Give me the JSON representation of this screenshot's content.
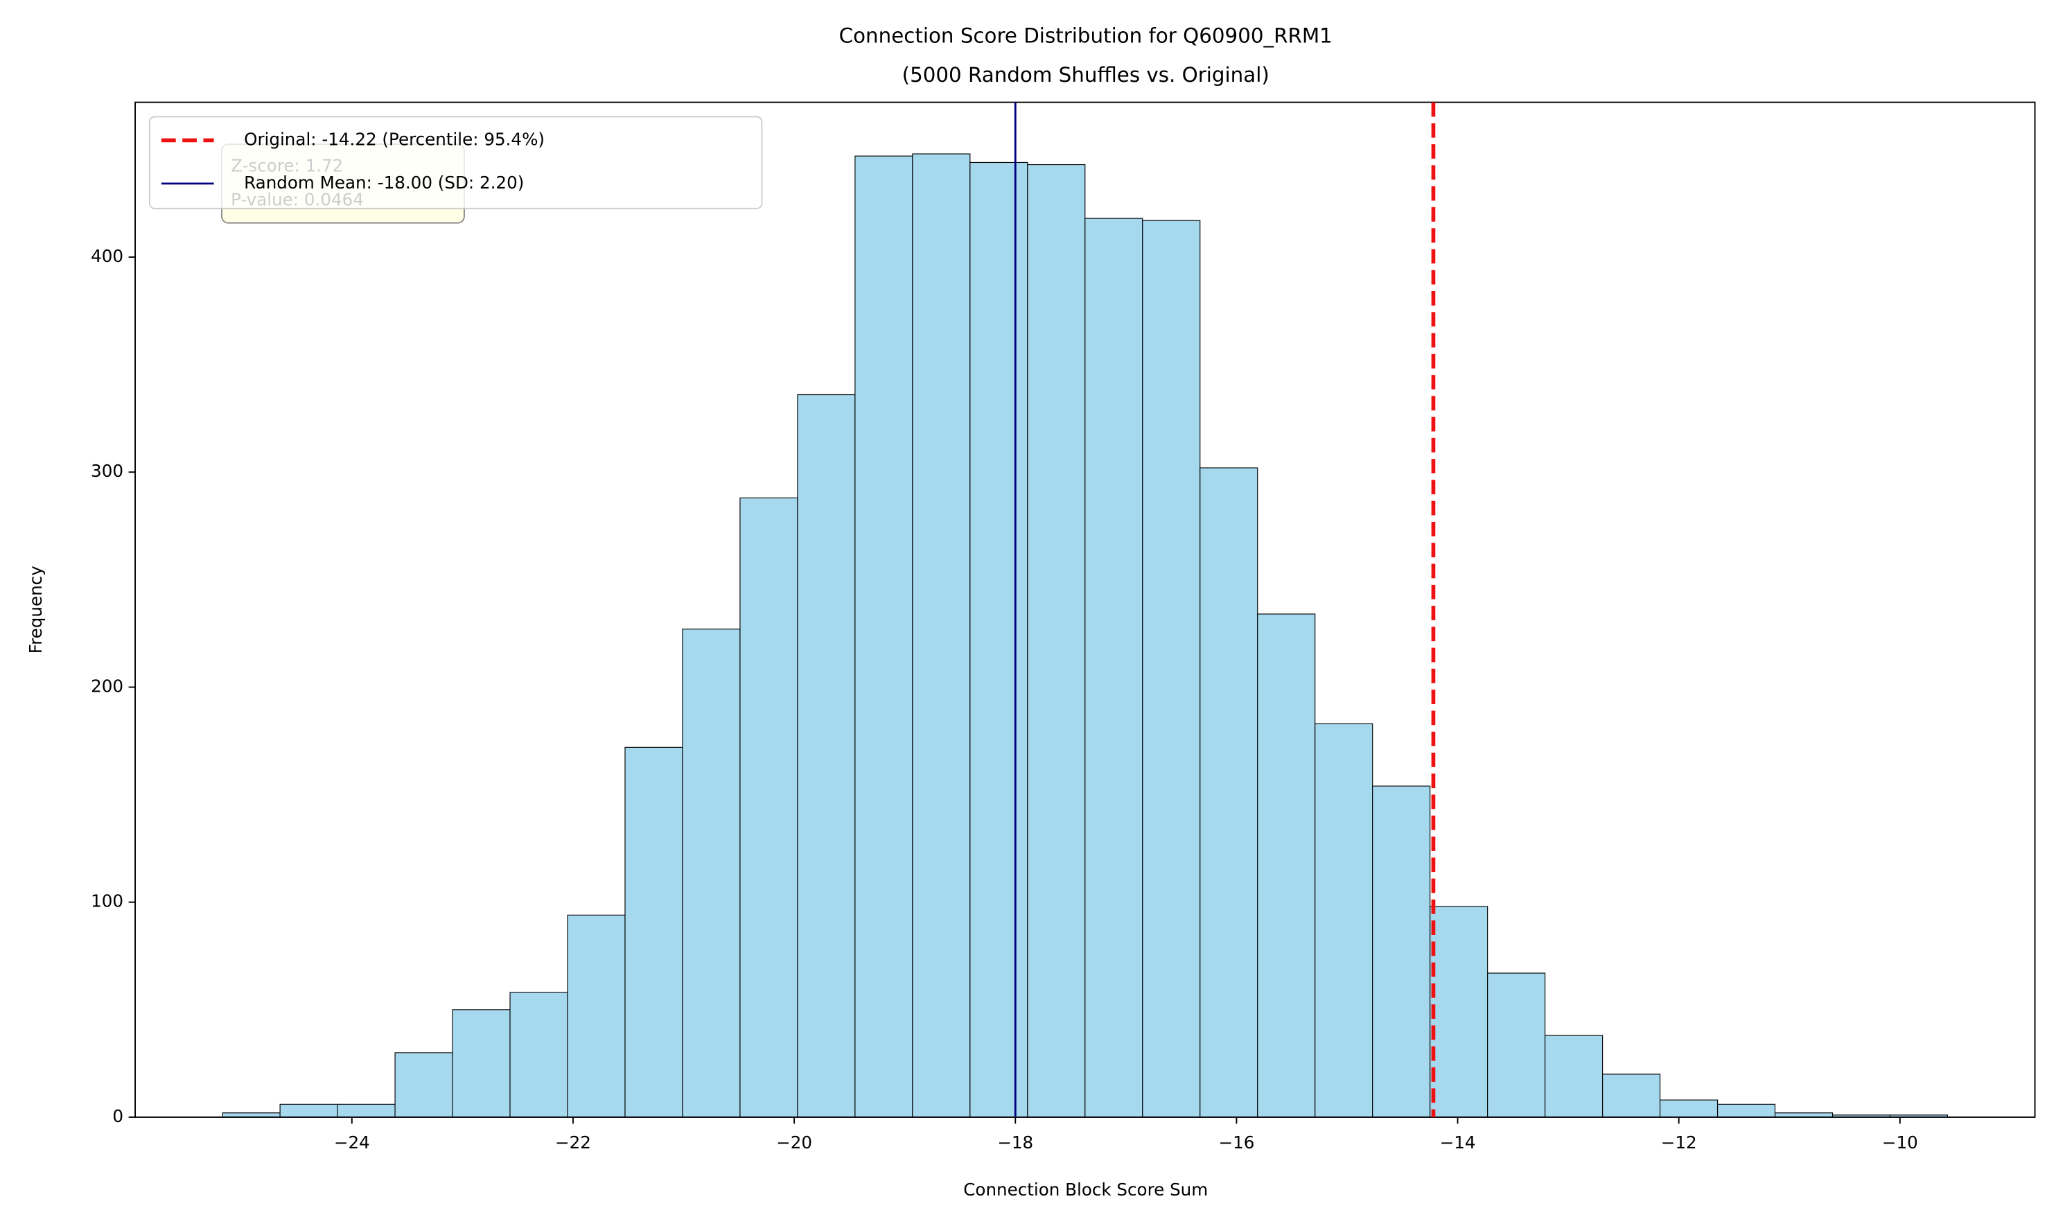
{
  "chart_data": {
    "type": "histogram",
    "title": "Connection Score Distribution for Q60900_RRM1",
    "subtitle": "(5000 Random Shuffles vs. Original)",
    "xlabel": "Connection Block Score Sum",
    "ylabel": "Frequency",
    "bins": [
      -25.17,
      -24.65,
      -24.13,
      -23.61,
      -23.09,
      -22.57,
      -22.05,
      -21.53,
      -21.01,
      -20.49,
      -19.97,
      -19.45,
      -18.93,
      -18.41,
      -17.89,
      -17.37,
      -16.85,
      -16.33,
      -15.81,
      -15.29,
      -14.77,
      -14.25,
      -13.73,
      -13.21,
      -12.69,
      -12.17,
      -11.65,
      -11.13,
      -10.61,
      -10.09,
      -9.57
    ],
    "values": [
      2,
      6,
      6,
      30,
      50,
      58,
      94,
      172,
      227,
      288,
      336,
      447,
      448,
      444,
      443,
      418,
      417,
      302,
      234,
      183,
      154,
      98,
      67,
      38,
      20,
      8,
      6,
      2,
      1,
      1
    ],
    "color": "#a6d8ee",
    "edgecolor": "#000000",
    "xlim": [
      -25.96,
      -8.78
    ],
    "ylim": [
      0,
      472
    ],
    "xticks": [
      {
        "value": -24,
        "label": "−24"
      },
      {
        "value": -22,
        "label": "−22"
      },
      {
        "value": -20,
        "label": "−20"
      },
      {
        "value": -18,
        "label": "−18"
      },
      {
        "value": -16,
        "label": "−16"
      },
      {
        "value": -14,
        "label": "−14"
      },
      {
        "value": -12,
        "label": "−12"
      },
      {
        "value": -10,
        "label": "−10"
      }
    ],
    "yticks": [
      0,
      100,
      200,
      300,
      400
    ],
    "lines": [
      {
        "name": "Original: -14.22 (Percentile: 95.4%)",
        "value": -14.22,
        "color": "#ee1111",
        "style": "dashed"
      },
      {
        "name": "Random Mean: -18.00 (SD: 2.20)",
        "value": -18.0,
        "color": "#000080",
        "style": "solid"
      }
    ],
    "annotation": [
      "Z-score: 1.72",
      "P-value: 0.0464"
    ],
    "legend": "upper left"
  }
}
